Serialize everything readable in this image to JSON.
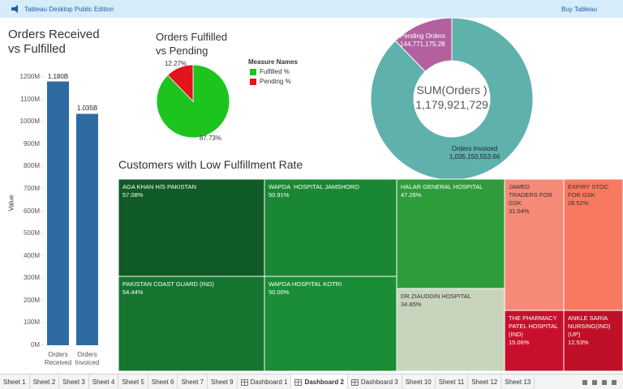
{
  "header": {
    "title": "Tableau Desktop Public Edition",
    "action": "Buy Tableau"
  },
  "chart_data": [
    {
      "type": "bar",
      "title": "Orders Received vs Fulfilled",
      "categories": [
        "Orders Received",
        "Orders Invoiced"
      ],
      "values": [
        1179921729,
        1035150553.66
      ],
      "value_labels": [
        "1.180B",
        "1.035B"
      ],
      "color": "#2e6ba3",
      "ylabel": "Value",
      "ylim": [
        0,
        1200000000
      ],
      "yticks": [
        {
          "value": 0,
          "label": "0M"
        },
        {
          "value": 100000000,
          "label": "100M"
        },
        {
          "value": 200000000,
          "label": "200M"
        },
        {
          "value": 300000000,
          "label": "300M"
        },
        {
          "value": 400000000,
          "label": "400M"
        },
        {
          "value": 500000000,
          "label": "500M"
        },
        {
          "value": 600000000,
          "label": "600M"
        },
        {
          "value": 700000000,
          "label": "700M"
        },
        {
          "value": 800000000,
          "label": "800M"
        },
        {
          "value": 900000000,
          "label": "900M"
        },
        {
          "value": 1000000000,
          "label": "1000M"
        },
        {
          "value": 1100000000,
          "label": "1100M"
        },
        {
          "value": 1200000000,
          "label": "1200M"
        }
      ]
    },
    {
      "type": "pie",
      "title": "Orders Fulfilled vs Pending",
      "legend_title": "Measure Names",
      "categories": [
        "Fulfilled %",
        "Pending %"
      ],
      "values": [
        87.73,
        12.27
      ],
      "value_labels": [
        "87.73%",
        "12.27%"
      ],
      "colors": [
        "#1ec41e",
        "#e3141b"
      ]
    },
    {
      "type": "donut",
      "center_title": "SUM(Orders )",
      "center_label": "1,179,921,729",
      "categories": [
        "Orders Invoiced",
        "Pending Orders"
      ],
      "values": [
        1035150553.66,
        144771175.28
      ],
      "value_labels": [
        "1,035,150,553.66",
        "144,771,175.28"
      ],
      "colors": [
        "#5fb1ac",
        "#b3619e"
      ]
    },
    {
      "type": "treemap",
      "title": "Customers with Low Fulfillment Rate",
      "categories": [
        "AGA KHAN H/S PAKISTAN",
        "PAKISTAN COAST GUARD (IND)",
        "WAPDA  HOSPITAL JAMSHORO",
        "WAPDA HOSPITAL KOTRI",
        "HALAR GENERAL HOSPITAL",
        "DR.ZIAUDDIN HOSPITAL",
        "JAWED TRADERS FOR GSK",
        "EXPIRY STOC FOR GSK",
        "THE PHARMACY PATEL HOSPITAL (IND)",
        "ANKLE SARIA NURSING(IND) (UP)"
      ],
      "values": [
        57.08,
        54.44,
        50.91,
        50.0,
        47.26,
        34.85,
        31.04,
        28.52,
        15.06,
        12.53
      ],
      "value_labels": [
        "57.08%",
        "54.44%",
        "50.91%",
        "50.00%",
        "47.26%",
        "34.85%",
        "31.04%",
        "28.52%",
        "15.06%",
        "12.53%"
      ],
      "colors": [
        "#0f5a26",
        "#15752f",
        "#198733",
        "#1b8d36",
        "#2f9c3b",
        "#c9d4bd",
        "#f58a78",
        "#f77a60",
        "#c8102e",
        "#bf1028"
      ]
    }
  ],
  "tabs": {
    "items": [
      "Sheet 1",
      "Sheet 2",
      "Sheet 3",
      "Sheet 4",
      "Sheet 5",
      "Sheet 6",
      "Sheet 7",
      "Sheet 9",
      "Dashboard 1",
      "Dashboard 2",
      "Dashboard 3",
      "Sheet 10",
      "Sheet 11",
      "Sheet 12",
      "Sheet 13"
    ],
    "active": 9
  }
}
